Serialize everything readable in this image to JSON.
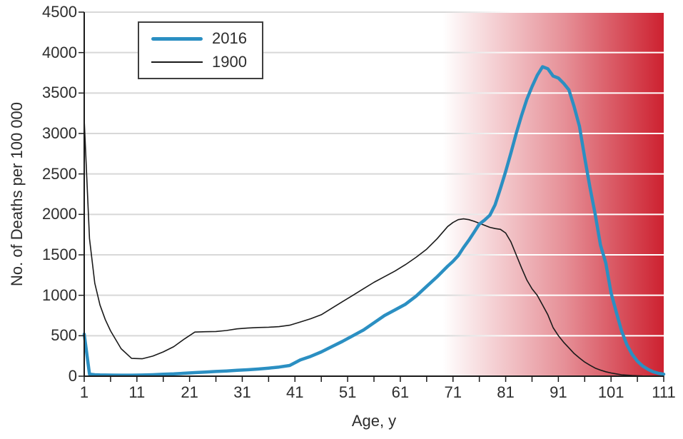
{
  "figure": {
    "x_axis": {
      "title": "Age, y",
      "major_tick_labels": [
        "1",
        "11",
        "21",
        "31",
        "41",
        "51",
        "61",
        "71",
        "81",
        "91",
        "101",
        "111"
      ],
      "minor_tick_step": 5,
      "range": [
        1,
        111
      ]
    },
    "y_axis": {
      "title": "No. of Deaths per 100 000",
      "tick_labels": [
        "0",
        "500",
        "1000",
        "1500",
        "2000",
        "2500",
        "3000",
        "3500",
        "4000",
        "4500"
      ],
      "range": [
        0,
        4500
      ]
    }
  },
  "chart_data": {
    "type": "line",
    "title": "",
    "xlabel": "Age, y",
    "ylabel": "No. of Deaths per 100 000",
    "xlim": [
      1,
      111
    ],
    "ylim": [
      0,
      4500
    ],
    "grid": "horizontal",
    "legend_position": "top-left",
    "x": [
      1,
      2,
      3,
      4,
      5,
      6,
      8,
      10,
      12,
      14,
      16,
      18,
      20,
      22,
      24,
      26,
      28,
      30,
      32,
      34,
      36,
      38,
      40,
      42,
      44,
      46,
      48,
      50,
      52,
      54,
      56,
      58,
      60,
      62,
      64,
      66,
      68,
      70,
      71,
      72,
      73,
      74,
      75,
      76,
      77,
      78,
      79,
      80,
      81,
      82,
      83,
      84,
      85,
      86,
      87,
      88,
      89,
      90,
      91,
      92,
      93,
      94,
      95,
      96,
      97,
      98,
      99,
      100,
      101,
      102,
      103,
      104,
      105,
      106,
      107,
      108,
      109,
      110,
      111
    ],
    "series": [
      {
        "name": "2016",
        "color": "#2b8fc2",
        "stroke_width": 4.5,
        "values": [
          520,
          25,
          18,
          15,
          14,
          13,
          12,
          12,
          14,
          18,
          24,
          28,
          36,
          44,
          50,
          58,
          64,
          72,
          79,
          88,
          100,
          113,
          132,
          200,
          245,
          300,
          365,
          430,
          500,
          570,
          660,
          750,
          820,
          890,
          990,
          1110,
          1230,
          1360,
          1420,
          1490,
          1590,
          1680,
          1780,
          1880,
          1930,
          1990,
          2120,
          2320,
          2530,
          2760,
          3000,
          3220,
          3420,
          3580,
          3720,
          3825,
          3800,
          3710,
          3685,
          3620,
          3540,
          3330,
          3090,
          2700,
          2330,
          2000,
          1620,
          1400,
          1030,
          790,
          560,
          390,
          270,
          185,
          125,
          85,
          55,
          35,
          25
        ]
      },
      {
        "name": "1900",
        "color": "#1a1a1a",
        "stroke_width": 1.6,
        "values": [
          3170,
          1700,
          1150,
          880,
          700,
          560,
          340,
          220,
          215,
          248,
          300,
          365,
          460,
          545,
          550,
          552,
          565,
          585,
          595,
          602,
          605,
          612,
          630,
          670,
          710,
          760,
          840,
          920,
          1000,
          1080,
          1160,
          1230,
          1300,
          1380,
          1470,
          1570,
          1700,
          1850,
          1900,
          1935,
          1945,
          1935,
          1915,
          1890,
          1865,
          1840,
          1825,
          1815,
          1770,
          1660,
          1500,
          1340,
          1190,
          1080,
          1000,
          880,
          760,
          600,
          500,
          420,
          350,
          280,
          225,
          175,
          135,
          100,
          75,
          55,
          40,
          28,
          18,
          12,
          8,
          5,
          3,
          2,
          1,
          1,
          0
        ]
      }
    ],
    "gridline_values": [
      500,
      1000,
      1500,
      2000,
      2500,
      3000,
      3500,
      4000,
      4500
    ],
    "shaded_region": {
      "x_start": 69,
      "x_end": 111,
      "color": "#cd2130",
      "description": "horizontal gradient from transparent to solid red over oldest ages"
    },
    "colors": {
      "axis": "#1a1a1a",
      "grid_left": "#d8d8d8",
      "grid_right": "#ffffff",
      "text": "#2d2d2d",
      "background": "#ffffff",
      "series_2016": "#2b8fc2",
      "series_1900": "#1a1a1a",
      "shade_red": "#cd2130"
    }
  }
}
